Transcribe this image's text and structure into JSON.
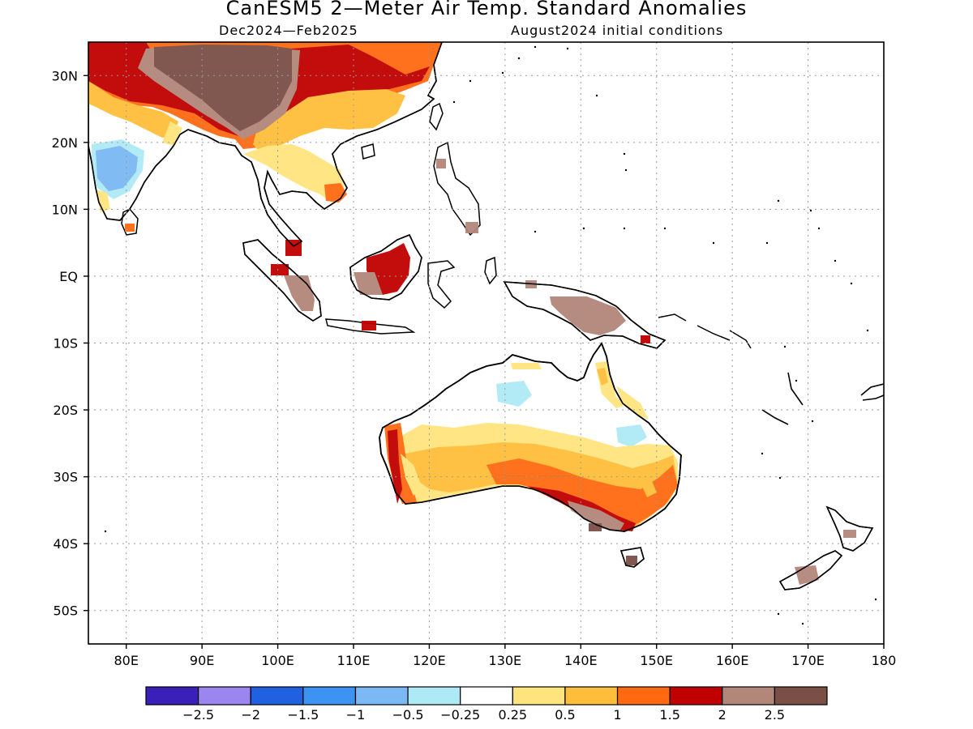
{
  "header": {
    "title": "CanESM5 2—Meter Air Temp. Standard Anomalies",
    "period": "Dec2024—Feb2025",
    "init": "August2024 initial conditions"
  },
  "map": {
    "lon_range": [
      75,
      180
    ],
    "lat_range": [
      -55,
      35
    ],
    "lon_ticks": [
      {
        "value": 80,
        "label": "80E"
      },
      {
        "value": 90,
        "label": "90E"
      },
      {
        "value": 100,
        "label": "100E"
      },
      {
        "value": 110,
        "label": "110E"
      },
      {
        "value": 120,
        "label": "120E"
      },
      {
        "value": 130,
        "label": "130E"
      },
      {
        "value": 140,
        "label": "140E"
      },
      {
        "value": 150,
        "label": "150E"
      },
      {
        "value": 160,
        "label": "160E"
      },
      {
        "value": 170,
        "label": "170E"
      },
      {
        "value": 180,
        "label": "180"
      }
    ],
    "lat_ticks": [
      {
        "value": 30,
        "label": "30N"
      },
      {
        "value": 20,
        "label": "20N"
      },
      {
        "value": 10,
        "label": "10N"
      },
      {
        "value": 0,
        "label": "EQ"
      },
      {
        "value": -10,
        "label": "10S"
      },
      {
        "value": -20,
        "label": "20S"
      },
      {
        "value": -30,
        "label": "30S"
      },
      {
        "value": -40,
        "label": "40S"
      },
      {
        "value": -50,
        "label": "50S"
      }
    ],
    "grid": "dotted"
  },
  "colorbar": {
    "colors": [
      "#3a1fb8",
      "#9a86ee",
      "#1f61e0",
      "#3d93f2",
      "#7bb8f4",
      "#aeeaf6",
      "#ffffff",
      "#ffe47e",
      "#ffbe3a",
      "#ff6a10",
      "#c00000",
      "#b3867a",
      "#7a5046"
    ],
    "labels": [
      "−2.5",
      "−2",
      "−1.5",
      "−1",
      "−0.5",
      "−0.25",
      "0.25",
      "0.5",
      "1",
      "1.5",
      "2",
      "2.5"
    ]
  }
}
